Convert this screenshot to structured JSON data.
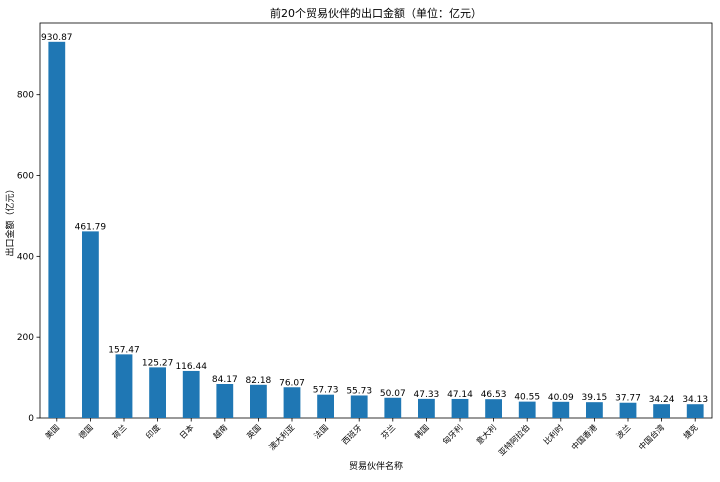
{
  "chart_data": {
    "type": "bar",
    "title": "前20个贸易伙伴的出口金额（单位：亿元）",
    "xlabel": "贸易伙伴名称",
    "ylabel": "出口金额（亿元）",
    "categories": [
      "美国",
      "德国",
      "荷兰",
      "印度",
      "日本",
      "越南",
      "英国",
      "澳大利亚",
      "法国",
      "西班牙",
      "芬兰",
      "韩国",
      "匈牙利",
      "意大利",
      "亚特阿拉伯",
      "比利时",
      "中国香港",
      "波兰",
      "中国台湾",
      "捷克"
    ],
    "values": [
      930.87,
      461.79,
      157.47,
      125.27,
      116.44,
      84.17,
      82.18,
      76.07,
      57.73,
      55.73,
      50.07,
      47.33,
      47.14,
      46.53,
      40.55,
      40.09,
      39.15,
      37.77,
      34.24,
      34.13
    ],
    "value_labels": [
      "930.87",
      "461.79",
      "157.47",
      "125.27",
      "116.44",
      "84.17",
      "82.18",
      "76.07",
      "57.73",
      "55.73",
      "50.07",
      "47.33",
      "47.14",
      "46.53",
      "40.55",
      "40.09",
      "39.15",
      "37.77",
      "34.24",
      "34.13"
    ],
    "ylim": [
      0,
      977.4
    ],
    "yticks": [
      0,
      200,
      400,
      600,
      800
    ],
    "grid": false,
    "bar_color": "#1f77b4"
  }
}
